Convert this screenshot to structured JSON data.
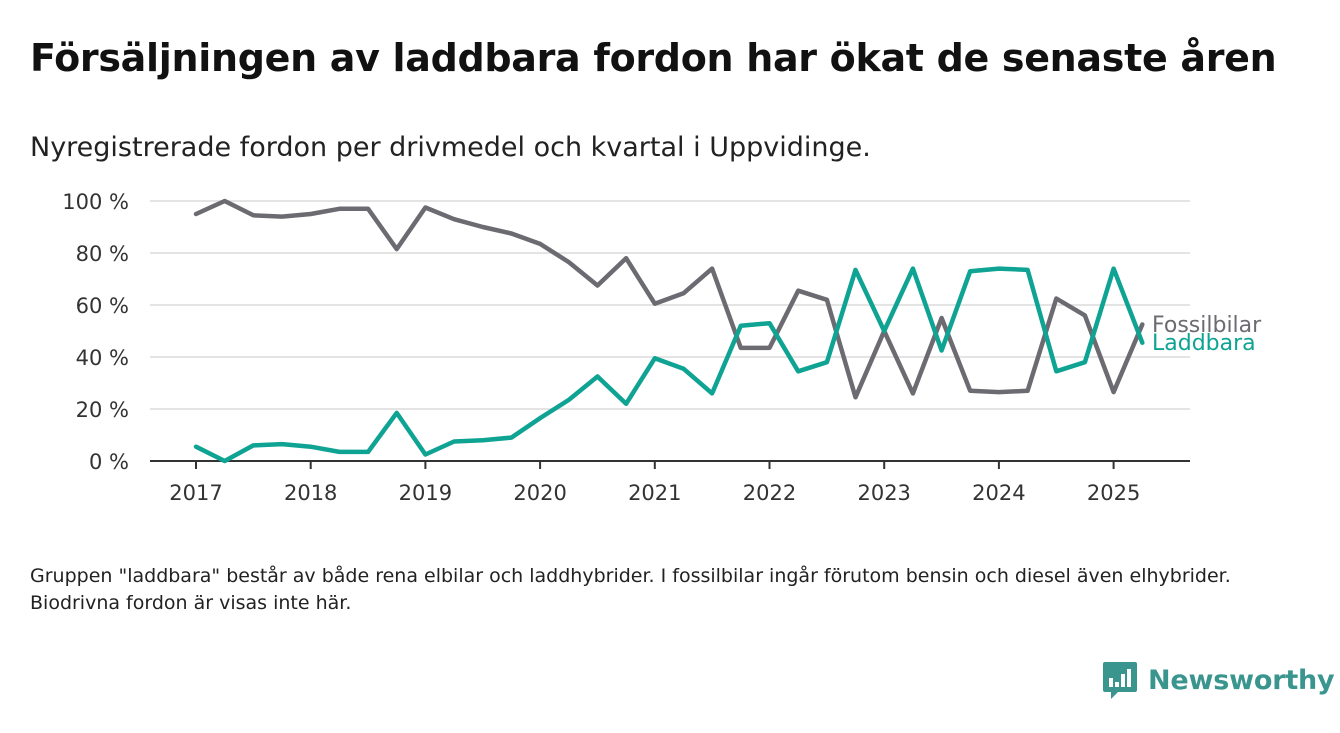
{
  "header": {
    "title": "Försäljningen av laddbara fordon har ökat de senaste åren",
    "subtitle": "Nyregistrerade fordon per drivmedel och kvartal i Uppvidinge."
  },
  "footer": {
    "note": "Gruppen \"laddbara\" består av både rena elbilar och laddhybrider. I fossilbilar ingår förutom bensin och diesel även elhybrider. Biodrivna fordon är visas inte här.",
    "logo_text": "Newsworthy",
    "logo_icon": "bar-chart-speech-icon"
  },
  "colors": {
    "fossil": "#6d6b72",
    "laddbara": "#0fa393",
    "grid": "#dcdcdc",
    "axis": "#333333",
    "brand": "#3a958f"
  },
  "chart_data": {
    "type": "line",
    "x_ticks": [
      "2017",
      "2018",
      "2019",
      "2020",
      "2021",
      "2022",
      "2023",
      "2024",
      "2025"
    ],
    "y_ticks": [
      "0 %",
      "20 %",
      "40 %",
      "60 %",
      "80 %",
      "100 %"
    ],
    "ylim": [
      0,
      100
    ],
    "grid": "horizontal",
    "legend": "end-of-line labels",
    "quarters": [
      "2017Q1",
      "2017Q2",
      "2017Q3",
      "2017Q4",
      "2018Q1",
      "2018Q2",
      "2018Q3",
      "2018Q4",
      "2019Q1",
      "2019Q2",
      "2019Q3",
      "2019Q4",
      "2020Q1",
      "2020Q2",
      "2020Q3",
      "2020Q4",
      "2021Q1",
      "2021Q2",
      "2021Q3",
      "2021Q4",
      "2022Q1",
      "2022Q2",
      "2022Q3",
      "2022Q4",
      "2023Q1",
      "2023Q2",
      "2023Q3",
      "2023Q4",
      "2024Q1",
      "2024Q2",
      "2024Q3",
      "2024Q4",
      "2025Q1",
      "2025Q2"
    ],
    "series": [
      {
        "name": "Fossilbilar",
        "values": [
          95,
          100,
          94.5,
          94,
          95,
          97,
          97,
          81.5,
          97.5,
          93,
          90,
          87.5,
          83.5,
          76.5,
          67.5,
          78,
          60.5,
          64.5,
          74,
          43.5,
          43.5,
          65.5,
          62,
          24.5,
          50,
          26,
          55,
          27,
          26.5,
          27,
          62.5,
          56,
          26.5,
          52.5
        ]
      },
      {
        "name": "Laddbara",
        "values": [
          5.5,
          0,
          6,
          6.5,
          5.5,
          3.5,
          3.5,
          18.5,
          2.5,
          7.5,
          8,
          9,
          16.5,
          23.5,
          32.5,
          22,
          39.5,
          35.5,
          26,
          52,
          53,
          34.5,
          38,
          73.5,
          50,
          74,
          42.5,
          73,
          74,
          73.5,
          34.5,
          38,
          74,
          45.5
        ]
      }
    ]
  }
}
